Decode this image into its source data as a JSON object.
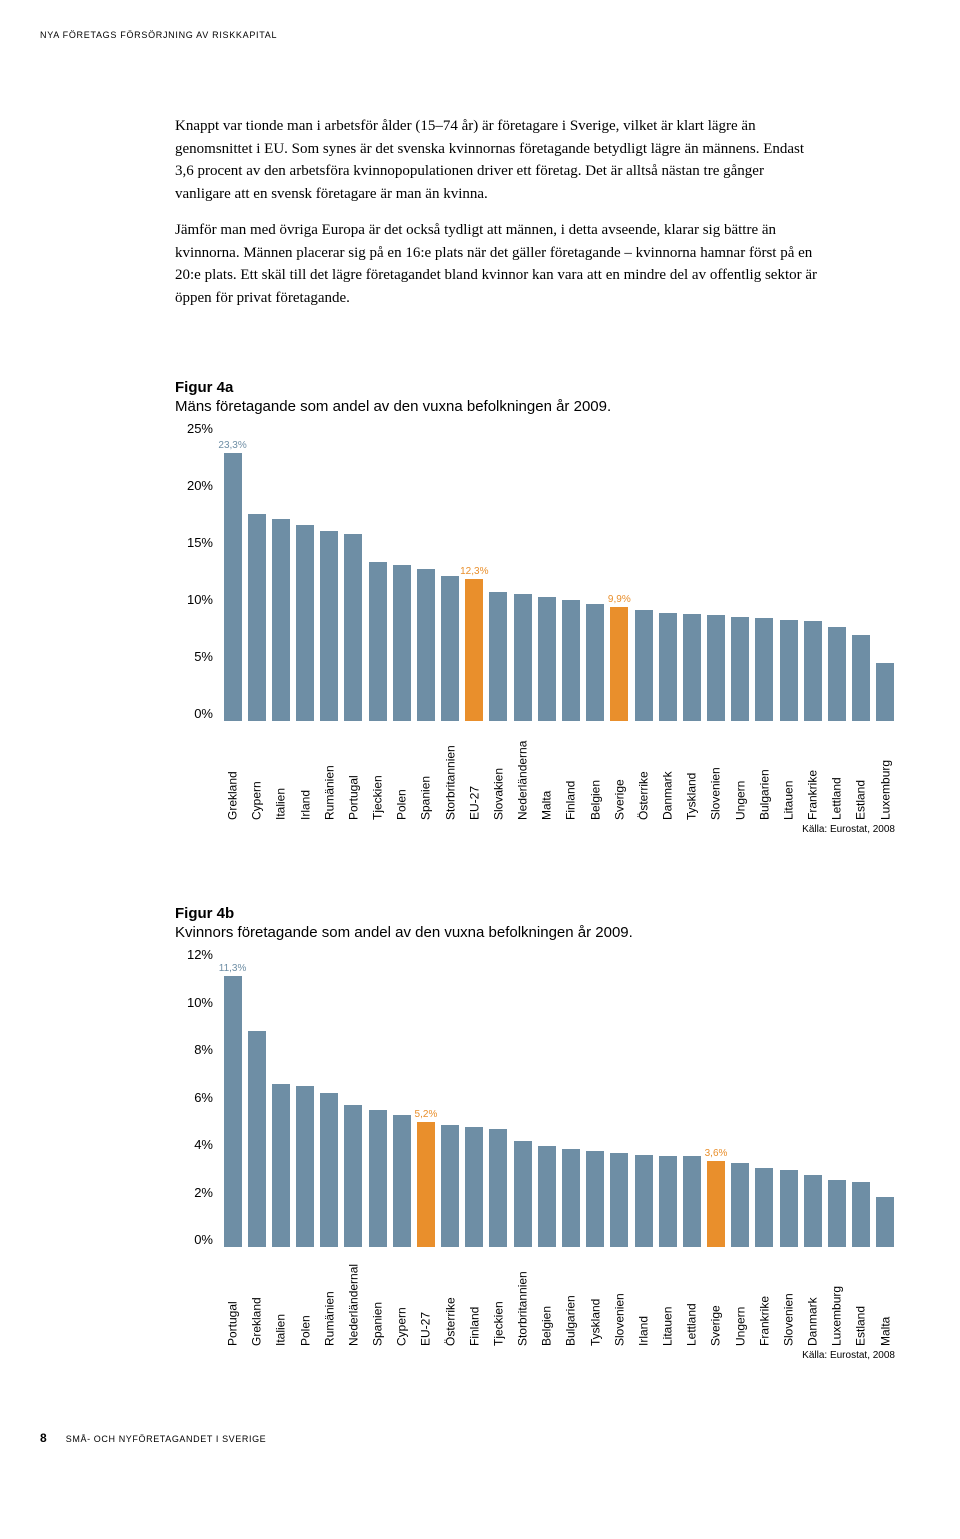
{
  "header": {
    "text": "NYA FÖRETAGS FÖRSÖRJNING AV RISKKAPITAL"
  },
  "body": {
    "p1": "Knappt var tionde man i arbetsför ålder (15–74 år) är företagare i Sverige, vilket är klart lägre än genomsnittet i EU. Som synes är det svenska kvinnornas företagande betydligt lägre än männens. Endast 3,6 procent av den arbetsföra kvinnopopulationen driver ett företag. Det är alltså nästan tre gånger vanligare att en svensk företagare är man än kvinna.",
    "p2": "Jämför man med övriga Europa är det också tydligt att männen, i detta avseende, klarar sig bättre än kvinnorna. Männen placerar sig på en 16:e plats när det gäller företagande – kvinnorna hamnar först på en 20:e plats. Ett skäl till det lägre företagandet bland kvinnor kan vara att en mindre del av offentlig sektor är öppen för privat företagande."
  },
  "chart_a": {
    "title": "Figur 4a",
    "subtitle": "Mäns företagande som andel av den vuxna befolkningen år 2009.",
    "source": "Källa: Eurostat, 2008",
    "ymax": 25,
    "ytick_step": 5,
    "yticks": [
      "25%",
      "20%",
      "15%",
      "10%",
      "5%",
      "0%"
    ],
    "bar_color": "#6e8ea5",
    "highlight_color": "#e98f2c",
    "label_color_normal": "#6e8ea5",
    "label_color_highlight": "#e98f2c",
    "bars": [
      {
        "label": "Grekland",
        "value": 23.3,
        "highlight": false,
        "show": "23,3%"
      },
      {
        "label": "Cypern",
        "value": 18.0,
        "highlight": false
      },
      {
        "label": "Italien",
        "value": 17.5,
        "highlight": false
      },
      {
        "label": "Irland",
        "value": 17.0,
        "highlight": false
      },
      {
        "label": "Rumänien",
        "value": 16.5,
        "highlight": false
      },
      {
        "label": "Portugal",
        "value": 16.2,
        "highlight": false
      },
      {
        "label": "Tjeckien",
        "value": 13.8,
        "highlight": false
      },
      {
        "label": "Polen",
        "value": 13.5,
        "highlight": false
      },
      {
        "label": "Spanien",
        "value": 13.2,
        "highlight": false
      },
      {
        "label": "Storbritannien",
        "value": 12.6,
        "highlight": false
      },
      {
        "label": "EU-27",
        "value": 12.3,
        "highlight": true,
        "show": "12,3%"
      },
      {
        "label": "Slovakien",
        "value": 11.2,
        "highlight": false
      },
      {
        "label": "Nederländerna",
        "value": 11.0,
        "highlight": false
      },
      {
        "label": "Malta",
        "value": 10.8,
        "highlight": false
      },
      {
        "label": "Finland",
        "value": 10.5,
        "highlight": false
      },
      {
        "label": "Belgien",
        "value": 10.2,
        "highlight": false
      },
      {
        "label": "Sverige",
        "value": 9.9,
        "highlight": true,
        "show": "9,9%"
      },
      {
        "label": "Österrike",
        "value": 9.6,
        "highlight": false
      },
      {
        "label": "Danmark",
        "value": 9.4,
        "highlight": false
      },
      {
        "label": "Tyskland",
        "value": 9.3,
        "highlight": false
      },
      {
        "label": "Slovenien",
        "value": 9.2,
        "highlight": false
      },
      {
        "label": "Ungern",
        "value": 9.0,
        "highlight": false
      },
      {
        "label": "Bulgarien",
        "value": 8.9,
        "highlight": false
      },
      {
        "label": "Litauen",
        "value": 8.8,
        "highlight": false
      },
      {
        "label": "Frankrike",
        "value": 8.7,
        "highlight": false
      },
      {
        "label": "Lettland",
        "value": 8.2,
        "highlight": false
      },
      {
        "label": "Estland",
        "value": 7.5,
        "highlight": false
      },
      {
        "label": "Luxemburg",
        "value": 5.0,
        "highlight": false
      }
    ]
  },
  "chart_b": {
    "title": "Figur 4b",
    "subtitle": "Kvinnors företagande som andel av den vuxna befolkningen år 2009.",
    "source": "Källa: Eurostat, 2008",
    "ymax": 12,
    "ytick_step": 2,
    "yticks": [
      "12%",
      "10%",
      "8%",
      "6%",
      "4%",
      "2%",
      "0%"
    ],
    "bar_color": "#6e8ea5",
    "highlight_color": "#e98f2c",
    "label_color_normal": "#6e8ea5",
    "label_color_highlight": "#e98f2c",
    "bars": [
      {
        "label": "Portugal",
        "value": 11.3,
        "highlight": false,
        "show": "11,3%"
      },
      {
        "label": "Grekland",
        "value": 9.0,
        "highlight": false
      },
      {
        "label": "Italien",
        "value": 6.8,
        "highlight": false
      },
      {
        "label": "Polen",
        "value": 6.7,
        "highlight": false
      },
      {
        "label": "Rumänien",
        "value": 6.4,
        "highlight": false
      },
      {
        "label": "Nederländernal",
        "value": 5.9,
        "highlight": false
      },
      {
        "label": "Spanien",
        "value": 5.7,
        "highlight": false
      },
      {
        "label": "Cypern",
        "value": 5.5,
        "highlight": false
      },
      {
        "label": "EU-27",
        "value": 5.2,
        "highlight": true,
        "show": "5,2%"
      },
      {
        "label": "Österrike",
        "value": 5.1,
        "highlight": false
      },
      {
        "label": "Finland",
        "value": 5.0,
        "highlight": false
      },
      {
        "label": "Tjeckien",
        "value": 4.9,
        "highlight": false
      },
      {
        "label": "Storbritannien",
        "value": 4.4,
        "highlight": false
      },
      {
        "label": "Belgien",
        "value": 4.2,
        "highlight": false
      },
      {
        "label": "Bulgarien",
        "value": 4.1,
        "highlight": false
      },
      {
        "label": "Tyskland",
        "value": 4.0,
        "highlight": false
      },
      {
        "label": "Slovenien",
        "value": 3.9,
        "highlight": false
      },
      {
        "label": "Irland",
        "value": 3.85,
        "highlight": false
      },
      {
        "label": "Litauen",
        "value": 3.8,
        "highlight": false
      },
      {
        "label": "Lettland",
        "value": 3.8,
        "highlight": false
      },
      {
        "label": "Sverige",
        "value": 3.6,
        "highlight": true,
        "show": "3,6%"
      },
      {
        "label": "Ungern",
        "value": 3.5,
        "highlight": false
      },
      {
        "label": "Frankrike",
        "value": 3.3,
        "highlight": false
      },
      {
        "label": "Slovenien",
        "value": 3.2,
        "highlight": false
      },
      {
        "label": "Danmark",
        "value": 3.0,
        "highlight": false
      },
      {
        "label": "Luxemburg",
        "value": 2.8,
        "highlight": false
      },
      {
        "label": "Estland",
        "value": 2.7,
        "highlight": false
      },
      {
        "label": "Malta",
        "value": 2.1,
        "highlight": false
      }
    ]
  },
  "footer": {
    "page": "8",
    "text": "SMÅ- OCH NYFÖRETAGANDET I SVERIGE"
  }
}
